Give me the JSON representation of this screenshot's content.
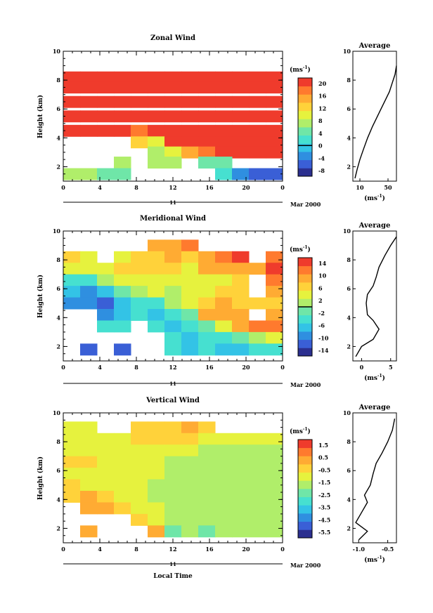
{
  "date_label": "Mar 2000",
  "day_label": "11",
  "xaxis_label": "Local Time",
  "unit_label": "(ms",
  "unit_sup": "-1",
  "unit_close": ")",
  "colors": [
    "#2b2f8f",
    "#3a5fd6",
    "#2f8fe0",
    "#33c3e6",
    "#46e0d0",
    "#6fe6a8",
    "#b0ee6a",
    "#e6f23e",
    "#ffd23a",
    "#ffab33",
    "#ff7a2e",
    "#ef3b2c"
  ],
  "chart_data": [
    {
      "type": "heatmap",
      "title": "Zonal Wind",
      "ylabel": "Height (km)",
      "xlabel": "",
      "x_ticks": [
        "0",
        "4",
        "8",
        "12",
        "16",
        "20",
        "0"
      ],
      "y_ticks": [
        "2",
        "4",
        "6",
        "8",
        "10"
      ],
      "xlim": [
        0,
        24
      ],
      "ylim": [
        1,
        10
      ],
      "colorbar": {
        "ticks": [
          "20",
          "16",
          "12",
          "8",
          "4",
          "0",
          "-4",
          "-8"
        ],
        "min": -10,
        "max": 22,
        "zero_line": 0
      },
      "rows": [
        {
          "h": 8.2,
          "v": [
            21,
            21,
            21,
            21,
            21,
            21,
            21,
            21,
            21,
            21,
            21,
            21,
            21
          ]
        },
        {
          "h": 7.5,
          "v": [
            21,
            21,
            21,
            21,
            21,
            21,
            21,
            21,
            21,
            21,
            21,
            21,
            21
          ]
        },
        {
          "h": 6.5,
          "v": [
            21,
            21,
            21,
            21,
            21,
            21,
            21,
            21,
            21,
            21,
            21,
            21,
            21
          ]
        },
        {
          "h": 5.5,
          "v": [
            21,
            21,
            21,
            21,
            21,
            21,
            21,
            21,
            21,
            21,
            21,
            21,
            21
          ]
        },
        {
          "h": 4.5,
          "v": [
            21,
            21,
            21,
            21,
            19,
            21,
            21,
            21,
            21,
            21,
            21,
            21,
            21
          ]
        },
        {
          "h": 3.7,
          "v": [
            null,
            null,
            null,
            null,
            12,
            10,
            21,
            21,
            21,
            21,
            21,
            21,
            21
          ]
        },
        {
          "h": 3.0,
          "v": [
            null,
            null,
            null,
            null,
            null,
            8,
            10,
            14,
            18,
            21,
            21,
            21,
            21
          ]
        },
        {
          "h": 2.3,
          "v": [
            null,
            null,
            null,
            7,
            null,
            8,
            6,
            null,
            5,
            4,
            null,
            null,
            null
          ]
        },
        {
          "h": 1.5,
          "v": [
            7,
            7,
            5,
            5,
            null,
            null,
            null,
            null,
            null,
            2,
            -4,
            -6,
            -6
          ]
        }
      ],
      "profile": {
        "title": "Average",
        "x_ticks": [
          "10",
          "50"
        ],
        "xlim": [
          0,
          62
        ],
        "x": [
          3,
          6,
          10,
          15,
          21,
          28,
          34,
          40,
          46,
          52,
          56,
          60,
          62
        ],
        "y": [
          1.2,
          1.8,
          2.5,
          3.2,
          4.0,
          4.8,
          5.4,
          6.0,
          6.6,
          7.2,
          7.8,
          8.4,
          9.0
        ]
      }
    },
    {
      "type": "heatmap",
      "title": "Meridional Wind",
      "ylabel": "Height (km)",
      "xlabel": "",
      "x_ticks": [
        "0",
        "4",
        "8",
        "12",
        "16",
        "20",
        "0"
      ],
      "y_ticks": [
        "2",
        "4",
        "6",
        "8",
        "10"
      ],
      "xlim": [
        0,
        24
      ],
      "ylim": [
        1,
        10
      ],
      "colorbar": {
        "ticks": [
          "14",
          "10",
          "6",
          "2",
          "-2",
          "-6",
          "-10",
          "-14"
        ],
        "min": -16,
        "max": 16,
        "zero_line": 0
      },
      "rows": [
        {
          "h": 9.0,
          "v": [
            null,
            null,
            null,
            null,
            null,
            9,
            8,
            11,
            null,
            null,
            null,
            null,
            null
          ]
        },
        {
          "h": 8.2,
          "v": [
            6,
            5,
            null,
            5,
            6,
            7,
            9,
            6,
            10,
            12,
            14,
            null,
            12
          ]
        },
        {
          "h": 7.4,
          "v": [
            4,
            3,
            5,
            6,
            6,
            7,
            6,
            4,
            8,
            10,
            9,
            9,
            14
          ]
        },
        {
          "h": 6.6,
          "v": [
            -4,
            -3,
            2,
            4,
            5,
            4,
            3,
            3,
            5,
            5,
            6,
            null,
            11
          ]
        },
        {
          "h": 5.8,
          "v": [
            -8,
            -9,
            -6,
            -2,
            1,
            3,
            2,
            3,
            4,
            6,
            6,
            null,
            9
          ]
        },
        {
          "h": 5.0,
          "v": [
            -9,
            -10,
            -11,
            -8,
            -4,
            -3,
            2,
            4,
            6,
            8,
            7,
            6,
            7
          ]
        },
        {
          "h": 4.2,
          "v": [
            null,
            null,
            -9,
            -8,
            -5,
            -6,
            -4,
            -2,
            8,
            10,
            9,
            null,
            8
          ]
        },
        {
          "h": 3.4,
          "v": [
            null,
            null,
            -5,
            -4,
            null,
            -4,
            -6,
            -4,
            -2,
            4,
            10,
            11,
            11
          ]
        },
        {
          "h": 2.6,
          "v": [
            null,
            null,
            null,
            null,
            null,
            null,
            -5,
            -6,
            -5,
            -3,
            -2,
            0,
            4
          ]
        },
        {
          "h": 1.8,
          "v": [
            null,
            -11,
            null,
            -11,
            null,
            null,
            -5,
            -7,
            -5,
            -6,
            -6,
            -4,
            -3
          ]
        }
      ],
      "profile": {
        "title": "Average",
        "x_ticks": [
          "0",
          "5"
        ],
        "xlim": [
          -1.5,
          6
        ],
        "x": [
          -1,
          0,
          2,
          3,
          2,
          1,
          0.8,
          1,
          2,
          2.5,
          3,
          4,
          5,
          6
        ],
        "y": [
          1.3,
          2.0,
          2.5,
          3.2,
          3.8,
          4.2,
          5.0,
          5.6,
          6.2,
          6.8,
          7.5,
          8.3,
          9.0,
          9.6
        ]
      }
    },
    {
      "type": "heatmap",
      "title": "Vertical Wind",
      "ylabel": "Height (km)",
      "xlabel": "Local Time",
      "x_ticks": [
        "0",
        "4",
        "8",
        "12",
        "16",
        "20",
        "0"
      ],
      "y_ticks": [
        "2",
        "4",
        "6",
        "8",
        "10"
      ],
      "xlim": [
        0,
        24
      ],
      "ylim": [
        1,
        10
      ],
      "colorbar": {
        "ticks": [
          "1.5",
          "0.5",
          "-0.5",
          "-1.5",
          "-2.5",
          "-3.5",
          "-4.5",
          "-5.5"
        ],
        "min": -6.5,
        "max": 2.5,
        "zero_line": null
      },
      "rows": [
        {
          "h": 9.0,
          "v": [
            -0.6,
            -0.7,
            null,
            null,
            0.0,
            0.2,
            0.1,
            0.3,
            0.2,
            null,
            null,
            null,
            null
          ]
        },
        {
          "h": 8.2,
          "v": [
            -0.8,
            -0.9,
            -0.9,
            -0.6,
            -0.4,
            -0.2,
            -0.3,
            -0.5,
            -0.6,
            -0.7,
            -0.9,
            -1.0,
            -1.0
          ]
        },
        {
          "h": 7.4,
          "v": [
            -0.9,
            -0.7,
            -0.6,
            -0.8,
            -0.9,
            -0.9,
            -1.0,
            -1.2,
            -1.5,
            -1.4,
            -1.5,
            -1.6,
            -1.5
          ]
        },
        {
          "h": 6.6,
          "v": [
            -0.5,
            -0.4,
            -0.6,
            -0.9,
            -1.0,
            -1.1,
            -1.3,
            -1.4,
            -1.6,
            -1.8,
            -1.8,
            -1.7,
            -1.6
          ]
        },
        {
          "h": 5.8,
          "v": [
            -0.8,
            -0.9,
            -1.0,
            -1.1,
            -1.0,
            -1.2,
            -1.4,
            -1.6,
            -1.7,
            -1.8,
            -1.9,
            -1.8,
            -1.8
          ]
        },
        {
          "h": 5.0,
          "v": [
            -0.4,
            -0.6,
            -0.9,
            -1.1,
            -1.2,
            -1.3,
            -1.6,
            -1.8,
            -1.9,
            -2.0,
            -1.9,
            -1.7,
            -1.7
          ]
        },
        {
          "h": 4.2,
          "v": [
            0.1,
            0.4,
            -0.5,
            -0.8,
            -1.1,
            -1.3,
            -1.6,
            -1.8,
            -2.0,
            -1.9,
            -1.8,
            -1.8,
            -1.8
          ]
        },
        {
          "h": 3.4,
          "v": [
            null,
            0.3,
            0.6,
            -0.5,
            -0.9,
            -1.2,
            -1.4,
            -1.6,
            -1.8,
            -1.9,
            -2.0,
            -1.9,
            -1.8
          ]
        },
        {
          "h": 2.6,
          "v": [
            null,
            null,
            null,
            null,
            0.0,
            -1.0,
            -1.6,
            -1.9,
            -2.0,
            -2.0,
            -1.9,
            -1.8,
            -1.8
          ]
        },
        {
          "h": 1.8,
          "v": [
            null,
            0.5,
            null,
            null,
            null,
            0.5,
            -2.2,
            -2.0,
            -2.1,
            -2.0,
            -1.9,
            -1.8,
            -1.9
          ]
        }
      ],
      "profile": {
        "title": "Average",
        "x_ticks": [
          "-1.0",
          "-0.5"
        ],
        "xlim": [
          -1.1,
          -0.35
        ],
        "x": [
          -1.0,
          -0.85,
          -1.05,
          -0.95,
          -0.85,
          -0.9,
          -0.8,
          -0.75,
          -0.7,
          -0.6,
          -0.5,
          -0.42,
          -0.38
        ],
        "y": [
          1.2,
          1.8,
          2.4,
          3.1,
          3.8,
          4.3,
          5.0,
          5.8,
          6.5,
          7.2,
          8.0,
          8.8,
          9.6
        ]
      }
    }
  ]
}
